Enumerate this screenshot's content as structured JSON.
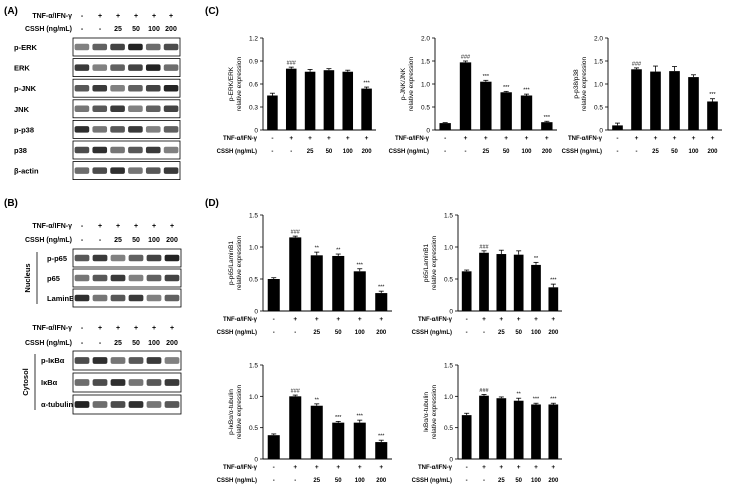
{
  "panels": {
    "a": "(A)",
    "b": "(B)",
    "c": "(C)",
    "d": "(D)"
  },
  "treatment_labels": {
    "tnf": "TNF-α/IFN-γ",
    "cssh": "CSSH (ng/mL)",
    "tnf_signs": [
      "-",
      "+",
      "+",
      "+",
      "+",
      "+"
    ],
    "cssh_values": [
      "-",
      "-",
      "25",
      "50",
      "100",
      "200"
    ]
  },
  "blot_a": {
    "rows": [
      "p-ERK",
      "ERK",
      "p-JNK",
      "JNK",
      "p-p38",
      "p38",
      "β-actin"
    ]
  },
  "blot_b": {
    "nucleus_label": "Nucleus",
    "nucleus_rows": [
      "p-p65",
      "p65",
      "LaminB1"
    ],
    "cytosol_label": "Cytosol",
    "cytosol_rows": [
      "p-IκBα",
      "IκBα",
      "α-tubulin"
    ]
  },
  "chart_data": [
    {
      "type": "bar",
      "title": "",
      "ylabel_lines": [
        "p-ERK/ERK",
        "relative expression"
      ],
      "xlabel": "",
      "categories": [
        "-",
        "-",
        "25",
        "50",
        "100",
        "200"
      ],
      "values": [
        0.45,
        0.8,
        0.76,
        0.78,
        0.76,
        0.54
      ],
      "errors": [
        0.03,
        0.02,
        0.03,
        0.02,
        0.02,
        0.02
      ],
      "ylim": [
        0,
        1.2
      ],
      "ticks": [
        "0",
        "0.3",
        "0.6",
        "0.9",
        "1.2"
      ],
      "annotations": [
        "",
        "###",
        "",
        "",
        "",
        "***"
      ]
    },
    {
      "type": "bar",
      "title": "",
      "ylabel_lines": [
        "p-JNK/JNK",
        "relative expression"
      ],
      "xlabel": "",
      "categories": [
        "-",
        "-",
        "25",
        "50",
        "100",
        "200"
      ],
      "values": [
        0.15,
        1.47,
        1.05,
        0.82,
        0.75,
        0.17
      ],
      "errors": [
        0.01,
        0.03,
        0.03,
        0.02,
        0.03,
        0.02
      ],
      "ylim": [
        0,
        2.0
      ],
      "ticks": [
        "0",
        "0.5",
        "1.0",
        "1.5",
        "2.0"
      ],
      "annotations": [
        "",
        "###",
        "***",
        "***",
        "***",
        "***"
      ]
    },
    {
      "type": "bar",
      "title": "",
      "ylabel_lines": [
        "p-p38/p38",
        "relative expression"
      ],
      "xlabel": "",
      "categories": [
        "-",
        "-",
        "25",
        "50",
        "100",
        "200"
      ],
      "values": [
        0.1,
        1.32,
        1.27,
        1.28,
        1.15,
        0.62
      ],
      "errors": [
        0.05,
        0.03,
        0.12,
        0.1,
        0.05,
        0.06
      ],
      "ylim": [
        0,
        2.0
      ],
      "ticks": [
        "0",
        "0.5",
        "1.0",
        "1.5",
        "2.0"
      ],
      "annotations": [
        "",
        "###",
        "",
        "",
        "",
        "***"
      ]
    },
    {
      "type": "bar",
      "title": "",
      "ylabel_lines": [
        "p-p65/LaminB1",
        "relative expression"
      ],
      "xlabel": "",
      "categories": [
        "-",
        "-",
        "25",
        "50",
        "100",
        "200"
      ],
      "values": [
        0.5,
        1.15,
        0.87,
        0.86,
        0.62,
        0.28
      ],
      "errors": [
        0.02,
        0.02,
        0.05,
        0.03,
        0.04,
        0.03
      ],
      "ylim": [
        0,
        1.5
      ],
      "ticks": [
        "0",
        "0.5",
        "1.0",
        "1.5"
      ],
      "annotations": [
        "",
        "###",
        "**",
        "**",
        "***",
        "***"
      ]
    },
    {
      "type": "bar",
      "title": "",
      "ylabel_lines": [
        "p65/LaminB1",
        "relative expression"
      ],
      "xlabel": "",
      "categories": [
        "-",
        "-",
        "25",
        "50",
        "100",
        "200"
      ],
      "values": [
        0.62,
        0.91,
        0.89,
        0.88,
        0.72,
        0.37
      ],
      "errors": [
        0.02,
        0.03,
        0.06,
        0.06,
        0.04,
        0.05
      ],
      "ylim": [
        0,
        1.5
      ],
      "ticks": [
        "0",
        "0.5",
        "1.0",
        "1.5"
      ],
      "annotations": [
        "",
        "###",
        "",
        "",
        "**",
        "***"
      ]
    },
    {
      "type": "bar",
      "title": "",
      "ylabel_lines": [
        "p-IκBα/α-tubulin",
        "relative expression"
      ],
      "xlabel": "",
      "categories": [
        "-",
        "-",
        "25",
        "50",
        "100",
        "200"
      ],
      "values": [
        0.38,
        1.0,
        0.85,
        0.58,
        0.58,
        0.27
      ],
      "errors": [
        0.02,
        0.02,
        0.03,
        0.02,
        0.04,
        0.03
      ],
      "ylim": [
        0,
        1.5
      ],
      "ticks": [
        "0",
        "0.5",
        "1.0",
        "1.5"
      ],
      "annotations": [
        "",
        "###",
        "**",
        "***",
        "***",
        "***"
      ]
    },
    {
      "type": "bar",
      "title": "",
      "ylabel_lines": [
        "IκBα/α-tubulin",
        "relative expression"
      ],
      "xlabel": "",
      "categories": [
        "-",
        "-",
        "25",
        "50",
        "100",
        "200"
      ],
      "values": [
        0.7,
        1.01,
        0.97,
        0.93,
        0.87,
        0.87
      ],
      "errors": [
        0.03,
        0.02,
        0.02,
        0.04,
        0.02,
        0.02
      ],
      "ylim": [
        0,
        1.5
      ],
      "ticks": [
        "0",
        "0.5",
        "1.0",
        "1.5"
      ],
      "annotations": [
        "",
        "###",
        "",
        "**",
        "***",
        "***"
      ]
    }
  ]
}
